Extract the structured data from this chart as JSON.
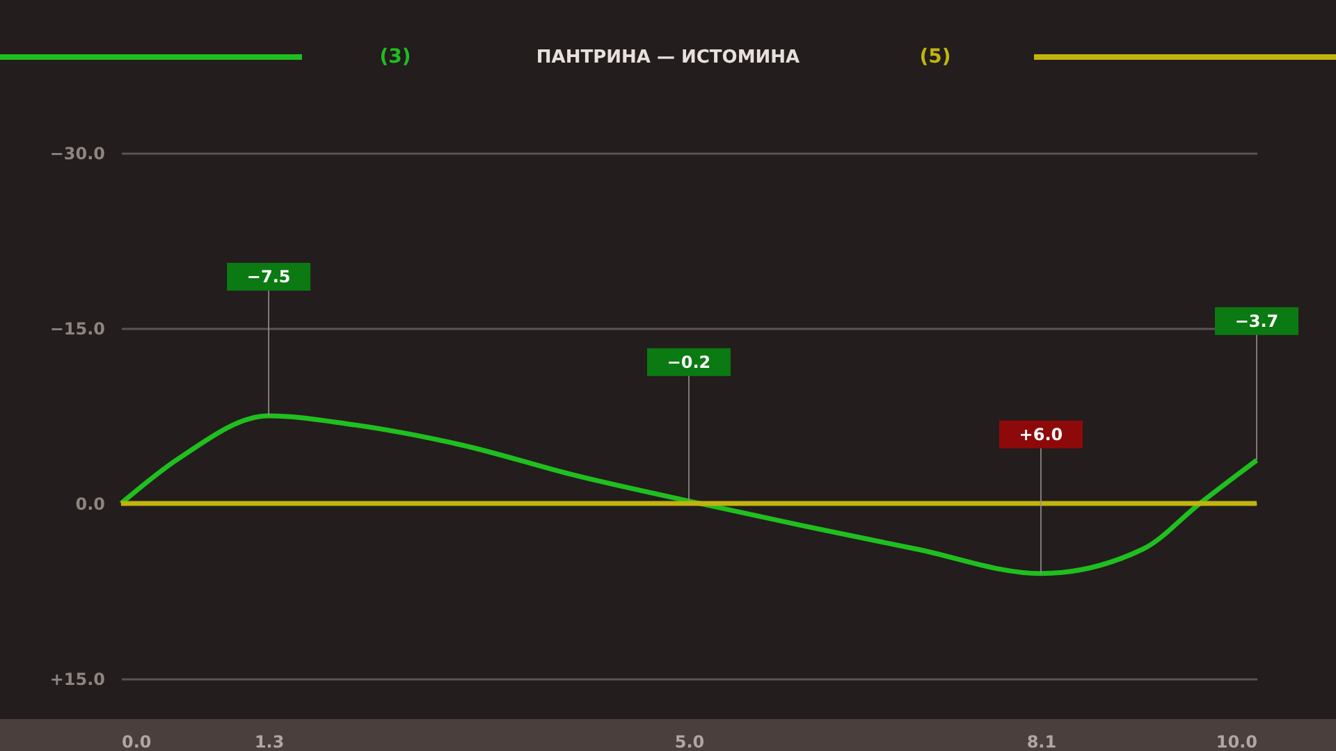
{
  "chart_data": {
    "type": "line",
    "title": "ПАНТРИНА — ИСТОМИНА",
    "x": [
      0,
      0.5,
      1.3,
      2,
      3,
      4,
      5,
      6,
      7,
      8.1,
      9,
      9.5,
      10
    ],
    "series": [
      {
        "name": "(3)",
        "color": "#1fbf1f",
        "values": [
          0,
          -3.8,
          -7.5,
          -6.8,
          -5.0,
          -2.4,
          -0.2,
          1.9,
          3.9,
          6.0,
          3.9,
          0,
          -3.7
        ],
        "value_labels": [
          null,
          null,
          "−7.5",
          null,
          null,
          null,
          "−0.2",
          null,
          null,
          "+6.0",
          null,
          null,
          "−3.7"
        ]
      },
      {
        "name": "(5)",
        "color": "#c2b40e",
        "values": [
          0,
          0,
          0,
          0,
          0,
          0,
          0,
          0,
          0,
          0,
          0,
          0,
          0
        ]
      }
    ],
    "xlim": [
      0,
      10
    ],
    "xticks": [
      {
        "value": 0,
        "label": "0.0"
      },
      {
        "value": 1.3,
        "label": "1.3"
      },
      {
        "value": 5,
        "label": "5.0"
      },
      {
        "value": 8.1,
        "label": "8.1"
      },
      {
        "value": 10,
        "label": "10.0"
      }
    ],
    "ylim": [
      15,
      -30
    ],
    "yticks": [
      {
        "value": -30,
        "label": "−30.0"
      },
      {
        "value": -15,
        "label": "−15.0"
      },
      {
        "value": 0,
        "label": "0.0"
      },
      {
        "value": 15,
        "label": "+15.0"
      }
    ],
    "grid": "y",
    "legend": "top",
    "marker": "none",
    "line_style": "solid"
  }
}
